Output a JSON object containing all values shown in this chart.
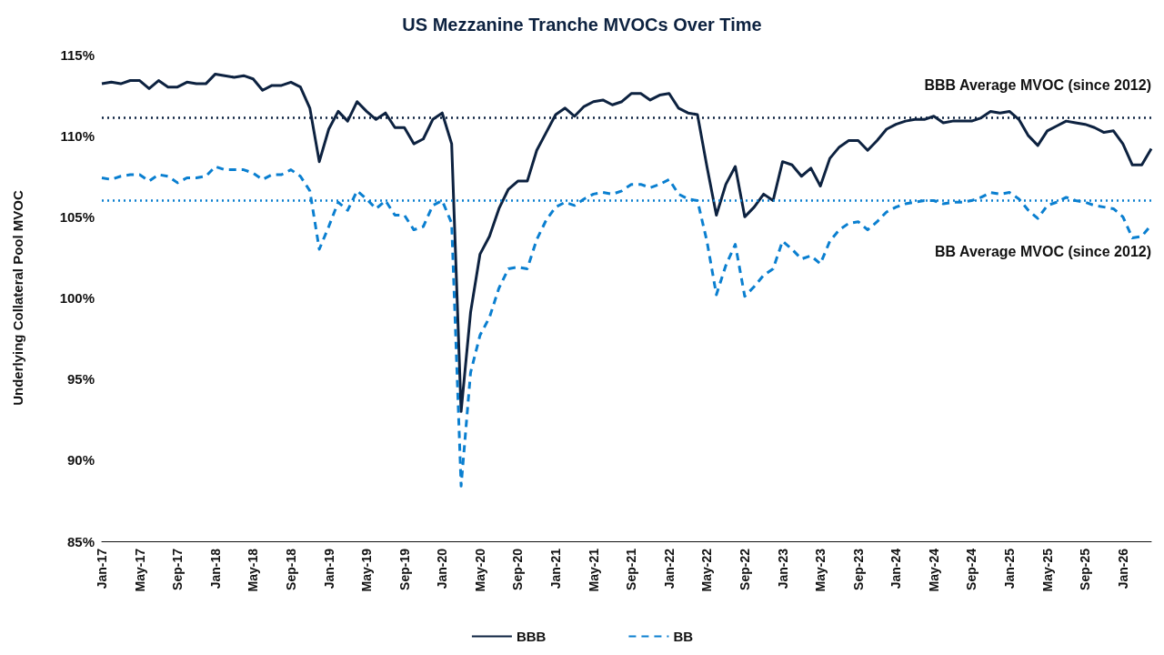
{
  "chart_data": {
    "type": "line",
    "title": "US Mezzanine Tranche MVOCs Over Time",
    "ylabel": "Underlying Collateral Pool MVOC",
    "categories": [
      "Jan-17",
      null,
      null,
      null,
      "May-17",
      null,
      null,
      null,
      "Sep-17",
      null,
      null,
      null,
      "Jan-18",
      null,
      null,
      null,
      "May-18",
      null,
      null,
      null,
      "Sep-18",
      null,
      null,
      null,
      "Jan-19",
      null,
      null,
      null,
      "May-19",
      null,
      null,
      null,
      "Sep-19",
      null,
      null,
      null,
      "Jan-20",
      null,
      null,
      null,
      "May-20",
      null,
      null,
      null,
      "Sep-20",
      null,
      null,
      null,
      "Jan-21",
      null,
      null,
      null,
      "May-21",
      null,
      null,
      null,
      "Sep-21",
      null,
      null,
      null,
      "Jan-22",
      null,
      null,
      null,
      "May-22",
      null,
      null,
      null,
      "Sep-22",
      null,
      null,
      null,
      "Jan-23",
      null,
      null,
      null,
      "May-23",
      null,
      null,
      null,
      "Sep-23",
      null,
      null,
      null,
      "Jan-24",
      null,
      null,
      null,
      "May-24",
      null,
      null,
      null,
      "Sep-24",
      null,
      null,
      null,
      "Jan-25",
      null,
      null,
      null,
      "May-25",
      null,
      null,
      null,
      "Sep-25",
      null,
      null,
      null,
      "Jan-26",
      null,
      null,
      null
    ],
    "series": [
      {
        "name": "BBB",
        "color": "#0d2240",
        "line_style": "solid",
        "values": [
          113.2,
          113.3,
          113.2,
          113.4,
          113.4,
          112.9,
          113.4,
          113.0,
          113.0,
          113.3,
          113.2,
          113.2,
          113.8,
          113.7,
          113.6,
          113.7,
          113.5,
          112.8,
          113.1,
          113.1,
          113.3,
          113.0,
          111.7,
          108.4,
          110.4,
          111.5,
          110.9,
          112.1,
          111.5,
          111.0,
          111.4,
          110.5,
          110.5,
          109.5,
          109.8,
          111.0,
          111.4,
          109.5,
          93.0,
          99.1,
          102.7,
          103.8,
          105.5,
          106.7,
          107.2,
          107.2,
          109.1,
          110.2,
          111.3,
          111.7,
          111.2,
          111.8,
          112.1,
          112.2,
          111.9,
          112.1,
          112.6,
          112.6,
          112.2,
          112.5,
          112.6,
          111.7,
          111.4,
          111.3,
          108.1,
          105.1,
          107.0,
          108.1,
          105.0,
          105.6,
          106.4,
          106.0,
          108.4,
          108.2,
          107.5,
          108.0,
          106.9,
          108.6,
          109.3,
          109.7,
          109.7,
          109.1,
          109.7,
          110.4,
          110.7,
          110.9,
          111.0,
          111.0,
          111.2,
          110.8,
          110.9,
          110.9,
          110.9,
          111.1,
          111.5,
          111.4,
          111.5,
          111.0,
          110.0,
          109.4,
          110.3,
          110.6,
          110.9,
          110.8,
          110.7,
          110.5,
          110.2,
          110.3,
          109.5,
          108.2,
          108.2,
          109.2
        ]
      },
      {
        "name": "BB",
        "color": "#0a7fd0",
        "line_style": "dashed",
        "values": [
          107.4,
          107.3,
          107.5,
          107.6,
          107.6,
          107.2,
          107.6,
          107.5,
          107.1,
          107.4,
          107.4,
          107.5,
          108.1,
          107.9,
          107.9,
          107.9,
          107.7,
          107.3,
          107.6,
          107.6,
          107.9,
          107.5,
          106.6,
          103.0,
          104.4,
          105.9,
          105.4,
          106.6,
          106.1,
          105.5,
          106.0,
          105.1,
          105.1,
          104.2,
          104.4,
          105.7,
          106.0,
          104.6,
          88.4,
          95.4,
          97.7,
          98.8,
          100.6,
          101.8,
          101.9,
          101.8,
          103.6,
          104.8,
          105.6,
          105.9,
          105.7,
          106.1,
          106.4,
          106.5,
          106.4,
          106.6,
          107.0,
          107.0,
          106.8,
          107.0,
          107.3,
          106.4,
          106.1,
          106.0,
          103.5,
          100.2,
          102.0,
          103.3,
          100.1,
          100.7,
          101.4,
          101.8,
          103.5,
          103.0,
          102.4,
          102.6,
          102.1,
          103.5,
          104.2,
          104.6,
          104.7,
          104.2,
          104.7,
          105.3,
          105.6,
          105.8,
          105.9,
          106.0,
          106.0,
          105.8,
          105.9,
          105.9,
          106.0,
          106.2,
          106.5,
          106.4,
          106.5,
          106.1,
          105.4,
          104.9,
          105.7,
          105.9,
          106.2,
          106.0,
          105.9,
          105.7,
          105.6,
          105.5,
          105.0,
          103.7,
          103.8,
          104.5
        ]
      }
    ],
    "ylim": [
      85,
      115
    ],
    "yticks": [
      {
        "value": 85,
        "label": "85%"
      },
      {
        "value": 90,
        "label": "90%"
      },
      {
        "value": 95,
        "label": "95%"
      },
      {
        "value": 100,
        "label": "100%"
      },
      {
        "value": 105,
        "label": "105%"
      },
      {
        "value": 110,
        "label": "110%"
      },
      {
        "value": 115,
        "label": "115%"
      }
    ],
    "ref_lines": [
      {
        "axis": "y",
        "value": 111.1,
        "label": "BBB Average MVOC (since 2012)",
        "color": "#0d2240",
        "line_style": "dotted"
      },
      {
        "axis": "y",
        "value": 106.0,
        "label": "BB Average MVOC (since 2012)",
        "color": "#0a7fd0",
        "line_style": "dotted"
      }
    ],
    "grid": false,
    "legend": "bottom",
    "marker": "none"
  }
}
